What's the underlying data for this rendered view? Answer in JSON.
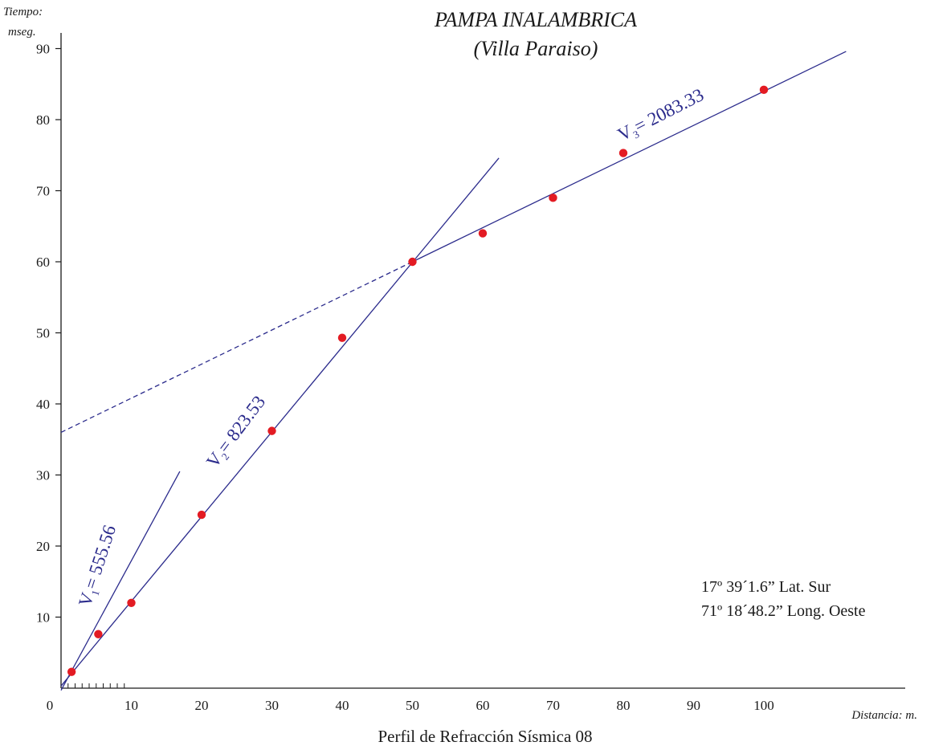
{
  "chart_data": {
    "type": "scatter",
    "title": "PAMPA INALAMBRICA",
    "subtitle": "(Villa Paraiso)",
    "ylabel_line1": "Tiempo:",
    "ylabel_line2": "mseg.",
    "xlabel": "Distancia:  m.",
    "caption": "Perfil de Refracción Sísmica 08",
    "coordinates": [
      "17º 39´1.6” Lat. Sur",
      "71º 18´48.2” Long. Oeste"
    ],
    "xlim": [
      0,
      120
    ],
    "ylim": [
      0,
      90
    ],
    "x_ticks": [
      10,
      20,
      30,
      40,
      50,
      60,
      70,
      80,
      90,
      100
    ],
    "x_origin_label": "0",
    "y_ticks": [
      10,
      20,
      30,
      40,
      50,
      60,
      70,
      80,
      90
    ],
    "grid": false,
    "points": [
      {
        "x": 1.5,
        "y": 2.3
      },
      {
        "x": 5.3,
        "y": 7.6
      },
      {
        "x": 10,
        "y": 12
      },
      {
        "x": 20,
        "y": 24.4
      },
      {
        "x": 30,
        "y": 36.2
      },
      {
        "x": 40,
        "y": 49.3
      },
      {
        "x": 50,
        "y": 60
      },
      {
        "x": 60,
        "y": 64
      },
      {
        "x": 70,
        "y": 69
      },
      {
        "x": 80,
        "y": 75.3
      },
      {
        "x": 100,
        "y": 84.2
      }
    ],
    "lines": [
      {
        "label_main": "V",
        "label_sub": "1",
        "label_rest": "= 555.56",
        "from": [
          0,
          -0.3
        ],
        "to": [
          16.9,
          30.5
        ],
        "dashed": false
      },
      {
        "label_main": "V",
        "label_sub": "2",
        "label_rest": "= 823.53",
        "from": [
          0,
          0.3
        ],
        "to": [
          62.3,
          74.6
        ],
        "dashed": false
      },
      {
        "label_main": "V",
        "label_sub": "3",
        "label_rest": "= 2083.33",
        "from": [
          50,
          60
        ],
        "to": [
          111.7,
          89.6
        ],
        "dashed": false
      },
      {
        "label_main": "",
        "label_sub": "",
        "label_rest": "",
        "from": [
          0,
          36
        ],
        "to": [
          50,
          60
        ],
        "dashed": true
      }
    ],
    "colors": {
      "points": "#e31b23",
      "lines": "#2b2b8c",
      "axes": "#1a1a1a"
    }
  }
}
